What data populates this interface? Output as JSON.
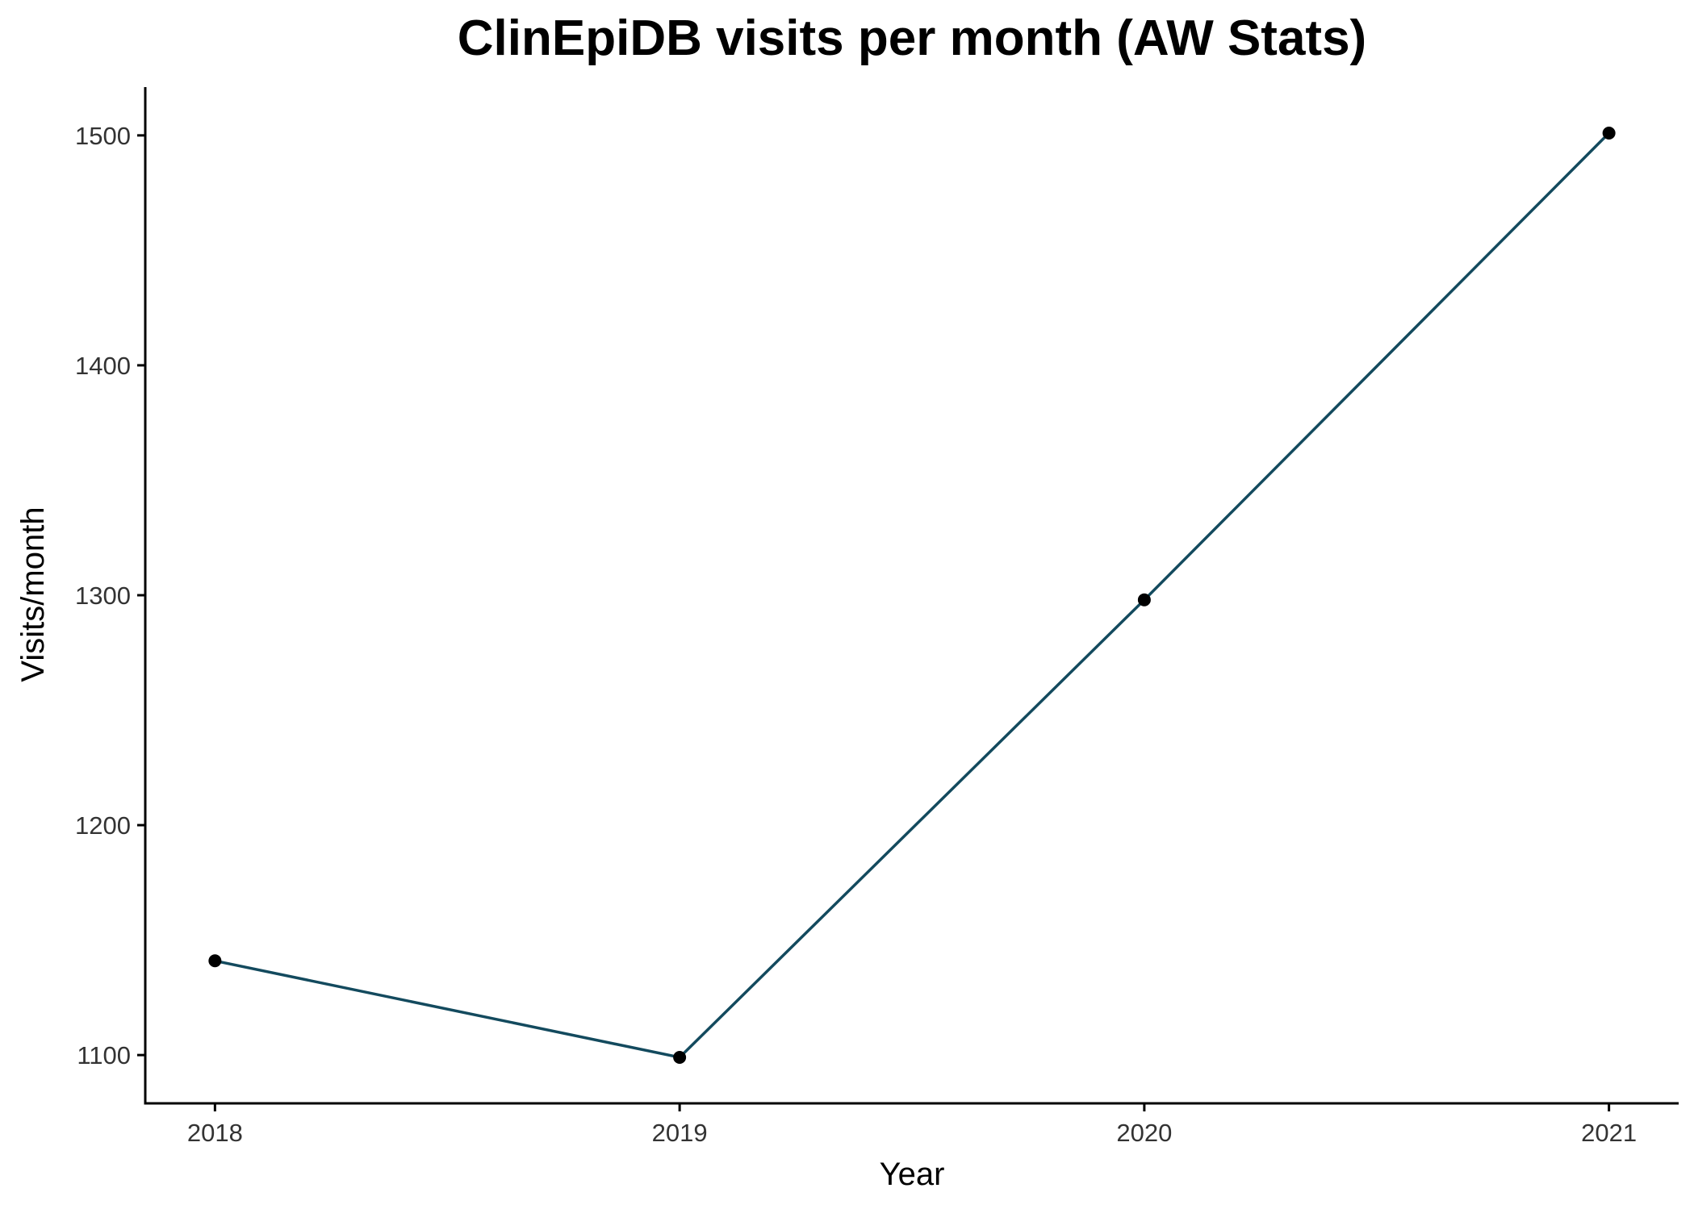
{
  "chart_data": {
    "type": "line",
    "title": "ClinEpiDB visits per month (AW Stats)",
    "xlabel": "Year",
    "ylabel": "Visits/month",
    "x": [
      2018,
      2019,
      2020,
      2021
    ],
    "x_tick_labels": [
      "2018",
      "2019",
      "2020",
      "2021"
    ],
    "y_ticks": [
      1100,
      1200,
      1300,
      1400,
      1500
    ],
    "y_tick_labels": [
      "1100",
      "1200",
      "1300",
      "1400",
      "1500"
    ],
    "series": [
      {
        "values": [
          1141,
          1099,
          1298,
          1501
        ]
      }
    ],
    "xlim": [
      2017.85,
      2021.15
    ],
    "ylim": [
      1079,
      1521
    ],
    "grid": false,
    "legend": "none",
    "colors": {
      "line": "#134a5e",
      "point": "#000000",
      "axis": "#000000",
      "tick_text": "#333333"
    }
  }
}
